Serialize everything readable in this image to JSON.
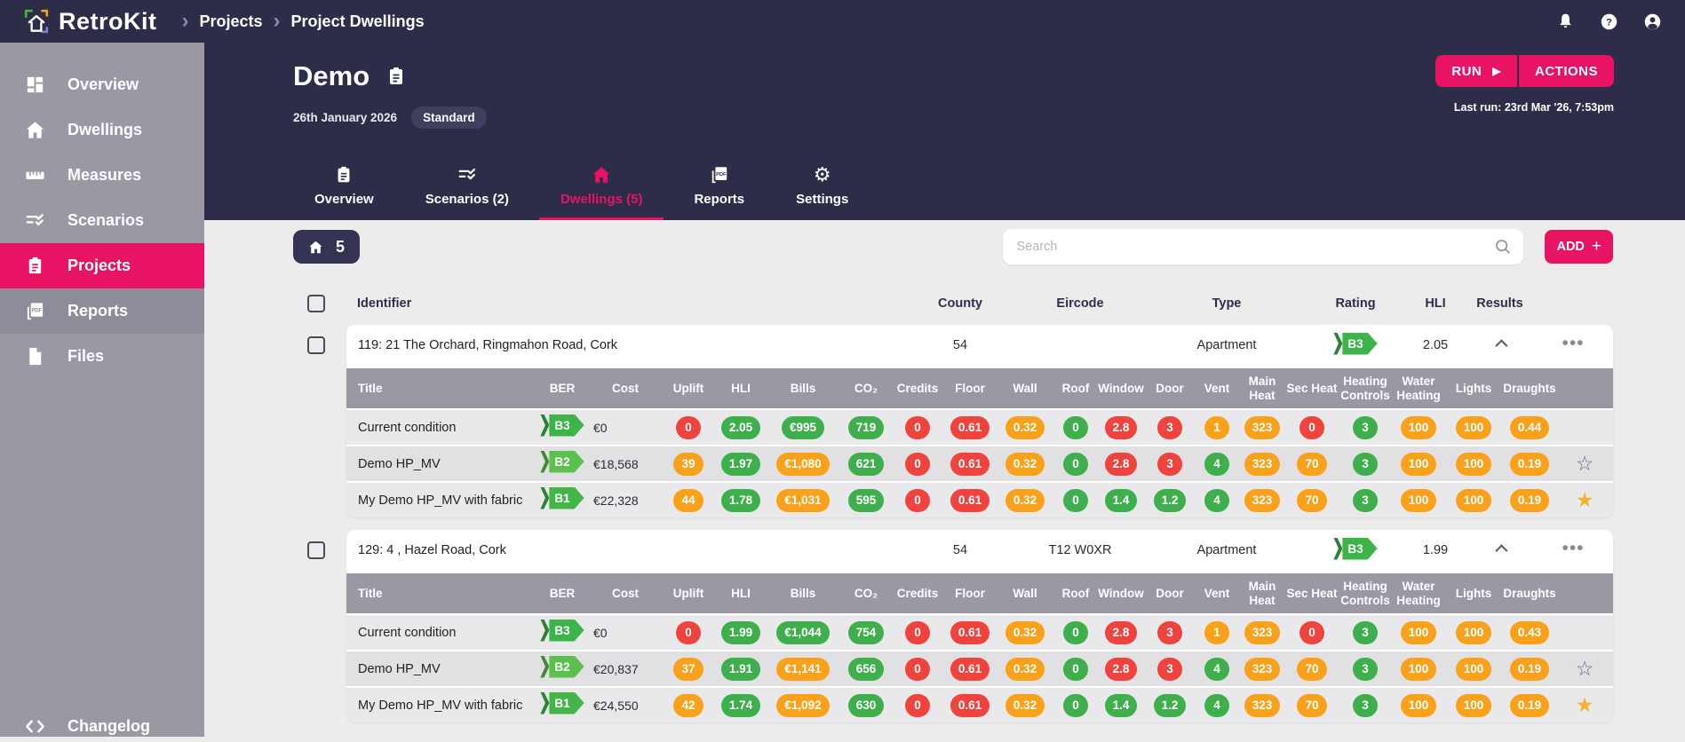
{
  "colors": {
    "accent": "#e91363",
    "navy": "#2e2d49",
    "sidebar_gray": "#9b98a3",
    "pill_red": "#f0433e",
    "pill_orange": "#f9a11b",
    "pill_green": "#3fae4c",
    "ber_b1": "#43b549",
    "ber_b2": "#5cc04e",
    "ber_b3": "#3cb44a",
    "star_filled": "#f0b432"
  },
  "navbar": {
    "brand": "RetroKit",
    "breadcrumbs": [
      "Projects",
      "Project Dwellings"
    ]
  },
  "sidebar": {
    "items": [
      {
        "label": "Overview",
        "icon": "grid-icon",
        "state": "normal"
      },
      {
        "label": "Dwellings",
        "icon": "house-icon",
        "state": "normal"
      },
      {
        "label": "Measures",
        "icon": "ruler-icon",
        "state": "normal"
      },
      {
        "label": "Scenarios",
        "icon": "list-check-icon",
        "state": "normal"
      },
      {
        "label": "Projects",
        "icon": "clipboard-icon",
        "state": "active"
      },
      {
        "label": "Reports",
        "icon": "pdf-icon",
        "state": "hover"
      },
      {
        "label": "Files",
        "icon": "file-icon",
        "state": "normal"
      }
    ],
    "footer": {
      "label": "Changelog",
      "icon": "code-icon"
    }
  },
  "project": {
    "title": "Demo",
    "date": "26th January 2026",
    "badge": "Standard",
    "run_label": "RUN",
    "actions_label": "ACTIONS",
    "last_run": "Last run: 23rd Mar '26, 7:53pm"
  },
  "tabs": [
    {
      "label": "Overview",
      "icon": "clipboard-icon",
      "active": false
    },
    {
      "label": "Scenarios (2)",
      "icon": "list-check-icon",
      "active": false
    },
    {
      "label": "Dwellings (5)",
      "icon": "house-icon",
      "active": true
    },
    {
      "label": "Reports",
      "icon": "pdf-icon",
      "active": false
    },
    {
      "label": "Settings",
      "icon": "gear-icon",
      "active": false
    }
  ],
  "toolbar": {
    "dwelling_count": "5",
    "search_placeholder": "Search",
    "add_label": "ADD",
    "add_plus": "+"
  },
  "table": {
    "outer_headers": {
      "identifier": "Identifier",
      "county": "County",
      "eircode": "Eircode",
      "type": "Type",
      "rating": "Rating",
      "hli": "HLI",
      "results": "Results"
    },
    "inner_headers": [
      "Title",
      "BER",
      "Cost",
      "Uplift",
      "HLI",
      "Bills",
      "CO₂",
      "Credits",
      "Floor",
      "Wall",
      "Roof",
      "Window",
      "Door",
      "Vent",
      "Main Heat",
      "Sec Heat",
      "Heating Controls",
      "Water Heating",
      "Lights",
      "Draughts"
    ],
    "groups": [
      {
        "identifier": "119: 21 The Orchard, Ringmahon Road, Cork",
        "county": "54",
        "eircode": "",
        "type": "Apartment",
        "rating": "B3",
        "hli": "2.05",
        "rows": [
          {
            "title": "Current condition",
            "ber": "B3",
            "cost": "€0",
            "star": "none",
            "pills": [
              [
                "0",
                "red"
              ],
              [
                "2.05",
                "green"
              ],
              [
                "€995",
                "green"
              ],
              [
                "719",
                "green"
              ],
              [
                "0",
                "red"
              ],
              [
                "0.61",
                "red"
              ],
              [
                "0.32",
                "orange"
              ],
              [
                "0",
                "green"
              ],
              [
                "2.8",
                "red"
              ],
              [
                "3",
                "red"
              ],
              [
                "1",
                "orange"
              ],
              [
                "323",
                "orange"
              ],
              [
                "0",
                "red"
              ],
              [
                "3",
                "green"
              ],
              [
                "100",
                "orange"
              ],
              [
                "100",
                "orange"
              ],
              [
                "0.44",
                "orange"
              ]
            ]
          },
          {
            "title": "Demo HP_MV",
            "ber": "B2",
            "cost": "€18,568",
            "star": "outline",
            "pills": [
              [
                "39",
                "orange"
              ],
              [
                "1.97",
                "green"
              ],
              [
                "€1,080",
                "orange"
              ],
              [
                "621",
                "green"
              ],
              [
                "0",
                "red"
              ],
              [
                "0.61",
                "red"
              ],
              [
                "0.32",
                "orange"
              ],
              [
                "0",
                "green"
              ],
              [
                "2.8",
                "red"
              ],
              [
                "3",
                "red"
              ],
              [
                "4",
                "green"
              ],
              [
                "323",
                "orange"
              ],
              [
                "70",
                "orange"
              ],
              [
                "3",
                "green"
              ],
              [
                "100",
                "orange"
              ],
              [
                "100",
                "orange"
              ],
              [
                "0.19",
                "orange"
              ]
            ]
          },
          {
            "title": "My Demo HP_MV with fabric",
            "ber": "B1",
            "cost": "€22,328",
            "star": "filled",
            "pills": [
              [
                "44",
                "orange"
              ],
              [
                "1.78",
                "green"
              ],
              [
                "€1,031",
                "orange"
              ],
              [
                "595",
                "green"
              ],
              [
                "0",
                "red"
              ],
              [
                "0.61",
                "red"
              ],
              [
                "0.32",
                "orange"
              ],
              [
                "0",
                "green"
              ],
              [
                "1.4",
                "green"
              ],
              [
                "1.2",
                "green"
              ],
              [
                "4",
                "green"
              ],
              [
                "323",
                "orange"
              ],
              [
                "70",
                "orange"
              ],
              [
                "3",
                "green"
              ],
              [
                "100",
                "orange"
              ],
              [
                "100",
                "orange"
              ],
              [
                "0.19",
                "orange"
              ]
            ]
          }
        ]
      },
      {
        "identifier": "129: 4 , Hazel Road, Cork",
        "county": "54",
        "eircode": "T12 W0XR",
        "type": "Apartment",
        "rating": "B3",
        "hli": "1.99",
        "rows": [
          {
            "title": "Current condition",
            "ber": "B3",
            "cost": "€0",
            "star": "none",
            "pills": [
              [
                "0",
                "red"
              ],
              [
                "1.99",
                "green"
              ],
              [
                "€1,044",
                "green"
              ],
              [
                "754",
                "green"
              ],
              [
                "0",
                "red"
              ],
              [
                "0.61",
                "red"
              ],
              [
                "0.32",
                "orange"
              ],
              [
                "0",
                "green"
              ],
              [
                "2.8",
                "red"
              ],
              [
                "3",
                "red"
              ],
              [
                "1",
                "orange"
              ],
              [
                "323",
                "orange"
              ],
              [
                "0",
                "red"
              ],
              [
                "3",
                "green"
              ],
              [
                "100",
                "orange"
              ],
              [
                "100",
                "orange"
              ],
              [
                "0.43",
                "orange"
              ]
            ]
          },
          {
            "title": "Demo HP_MV",
            "ber": "B2",
            "cost": "€20,837",
            "star": "outline",
            "pills": [
              [
                "37",
                "orange"
              ],
              [
                "1.91",
                "green"
              ],
              [
                "€1,141",
                "orange"
              ],
              [
                "656",
                "green"
              ],
              [
                "0",
                "red"
              ],
              [
                "0.61",
                "red"
              ],
              [
                "0.32",
                "orange"
              ],
              [
                "0",
                "green"
              ],
              [
                "2.8",
                "red"
              ],
              [
                "3",
                "red"
              ],
              [
                "4",
                "green"
              ],
              [
                "323",
                "orange"
              ],
              [
                "70",
                "orange"
              ],
              [
                "3",
                "green"
              ],
              [
                "100",
                "orange"
              ],
              [
                "100",
                "orange"
              ],
              [
                "0.19",
                "orange"
              ]
            ]
          },
          {
            "title": "My Demo HP_MV with fabric",
            "ber": "B1",
            "cost": "€24,550",
            "star": "filled",
            "pills": [
              [
                "42",
                "orange"
              ],
              [
                "1.74",
                "green"
              ],
              [
                "€1,092",
                "orange"
              ],
              [
                "630",
                "green"
              ],
              [
                "0",
                "red"
              ],
              [
                "0.61",
                "red"
              ],
              [
                "0.32",
                "orange"
              ],
              [
                "0",
                "green"
              ],
              [
                "1.4",
                "green"
              ],
              [
                "1.2",
                "green"
              ],
              [
                "4",
                "green"
              ],
              [
                "323",
                "orange"
              ],
              [
                "70",
                "orange"
              ],
              [
                "3",
                "green"
              ],
              [
                "100",
                "orange"
              ],
              [
                "100",
                "orange"
              ],
              [
                "0.19",
                "orange"
              ]
            ]
          }
        ]
      }
    ]
  }
}
